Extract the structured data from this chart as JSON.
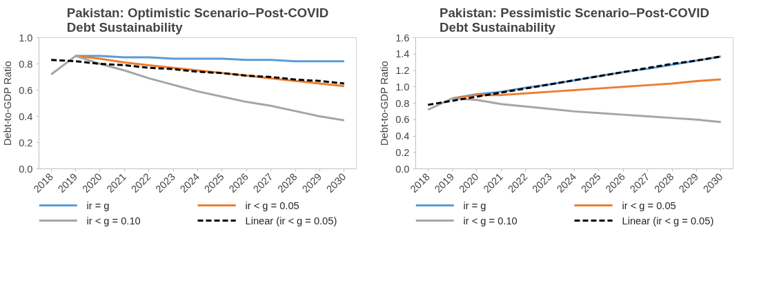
{
  "chart_data": [
    {
      "type": "line",
      "title": "Pakistan: Optimistic Scenario–Post-COVID\nDebt Sustainability",
      "ylabel": "Debt-to-GDP Ratio",
      "categories": [
        "2018",
        "2019",
        "2020",
        "2021",
        "2022",
        "2023",
        "2024",
        "2025",
        "2026",
        "2027",
        "2028",
        "2029",
        "2030"
      ],
      "ylim": [
        0,
        1.0
      ],
      "yticks": [
        {
          "value": 0,
          "label": "0.0"
        },
        {
          "value": 0.2,
          "label": "0.2"
        },
        {
          "value": 0.4,
          "label": "0.4"
        },
        {
          "value": 0.6,
          "label": "0.6"
        },
        {
          "value": 0.8,
          "label": "0.8"
        },
        {
          "value": 1.0,
          "label": "1.0"
        }
      ],
      "grid": false,
      "legend": "bottom",
      "series": [
        {
          "name": "ir = g",
          "color": "#5b9bd5",
          "values": [
            null,
            0.86,
            0.86,
            0.85,
            0.85,
            0.84,
            0.84,
            0.84,
            0.83,
            0.83,
            0.82,
            0.82,
            0.82
          ]
        },
        {
          "name": "ir < g = 0.05",
          "color": "#ed7d31",
          "values": [
            null,
            0.86,
            0.84,
            0.81,
            0.79,
            0.77,
            0.75,
            0.73,
            0.71,
            0.69,
            0.67,
            0.65,
            0.63
          ]
        },
        {
          "name": "ir < g = 0.10",
          "color": "#a5a5a5",
          "values": [
            0.72,
            0.86,
            0.8,
            0.75,
            0.69,
            0.64,
            0.59,
            0.55,
            0.51,
            0.48,
            0.44,
            0.4,
            0.37
          ]
        },
        {
          "name": "Linear (ir < g = 0.05)",
          "color": "#000000",
          "line_style": "dashed",
          "values": [
            0.83,
            0.82,
            0.8,
            0.79,
            0.77,
            0.76,
            0.74,
            0.73,
            0.71,
            0.7,
            0.68,
            0.67,
            0.65
          ]
        }
      ]
    },
    {
      "type": "line",
      "title": "Pakistan: Pessimistic Scenario–Post-COVID\nDebt Sustainability",
      "ylabel": "Debt-to-GDP Ratio",
      "categories": [
        "2018",
        "2019",
        "2020",
        "2021",
        "2022",
        "2023",
        "2024",
        "2025",
        "2026",
        "2027",
        "2028",
        "2029",
        "2030"
      ],
      "ylim": [
        0,
        1.6
      ],
      "yticks": [
        {
          "value": 0,
          "label": "0.0"
        },
        {
          "value": 0.2,
          "label": "0.2"
        },
        {
          "value": 0.4,
          "label": "0.4"
        },
        {
          "value": 0.6,
          "label": "0.6"
        },
        {
          "value": 0.8,
          "label": "0.8"
        },
        {
          "value": 1.0,
          "label": "1.0"
        },
        {
          "value": 1.2,
          "label": "1.2"
        },
        {
          "value": 1.4,
          "label": "1.4"
        },
        {
          "value": 1.6,
          "label": "1.6"
        }
      ],
      "grid": false,
      "legend": "bottom",
      "series": [
        {
          "name": "ir = g",
          "color": "#5b9bd5",
          "values": [
            null,
            0.86,
            0.91,
            0.94,
            0.99,
            1.03,
            1.08,
            1.13,
            1.18,
            1.22,
            1.27,
            1.32,
            1.37
          ]
        },
        {
          "name": "ir < g = 0.05",
          "color": "#ed7d31",
          "values": [
            null,
            0.86,
            0.9,
            0.9,
            0.92,
            0.94,
            0.96,
            0.98,
            1.0,
            1.02,
            1.04,
            1.07,
            1.09
          ]
        },
        {
          "name": "ir < g = 0.10",
          "color": "#a5a5a5",
          "values": [
            0.72,
            0.86,
            0.84,
            0.79,
            0.76,
            0.73,
            0.7,
            0.68,
            0.66,
            0.64,
            0.62,
            0.6,
            0.57
          ]
        },
        {
          "name": "Linear (ir < g = 0.05)",
          "color": "#000000",
          "line_style": "dashed",
          "values": [
            0.78,
            0.83,
            0.88,
            0.93,
            0.98,
            1.03,
            1.08,
            1.13,
            1.18,
            1.23,
            1.28,
            1.32,
            1.37
          ]
        }
      ]
    }
  ]
}
